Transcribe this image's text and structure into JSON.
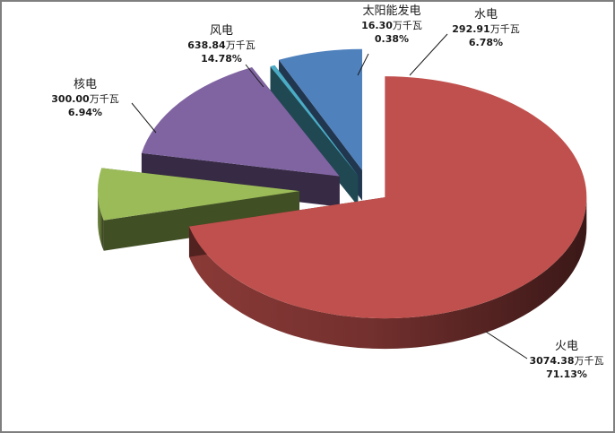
{
  "chart_data": {
    "type": "pie",
    "style": "3d-exploded",
    "slices": [
      {
        "name": "火电",
        "value": 3074.38,
        "unit": "万千瓦",
        "percent": "71.13%",
        "color": "#c0504d"
      },
      {
        "name": "核电",
        "value": 300.0,
        "unit": "万千瓦",
        "percent": "6.94%",
        "color": "#9bbb59"
      },
      {
        "name": "风电",
        "value": 638.84,
        "unit": "万千瓦",
        "percent": "14.78%",
        "color": "#8064a2"
      },
      {
        "name": "太阳能发电",
        "value": 16.3,
        "unit": "万千瓦",
        "percent": "0.38%",
        "color": "#4bacc6"
      },
      {
        "name": "水电",
        "value": 292.91,
        "unit": "万千瓦",
        "percent": "6.78%",
        "color": "#4f81bd"
      }
    ]
  }
}
